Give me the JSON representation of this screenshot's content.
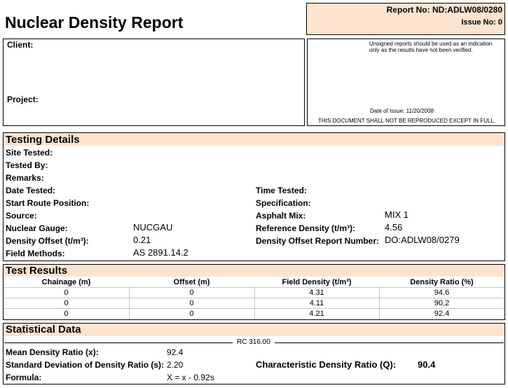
{
  "header": {
    "title": "Nuclear Density Report",
    "report_no": "Report No: ND:ADLW08/0280",
    "issue_no": "Issue No: 0"
  },
  "client_box": {
    "client": "Client:",
    "project": "Project:"
  },
  "notice": {
    "unsigned": "Unsigned reports should be used as an indication only as the results have not been verified.",
    "date_of_issue": "Date of Issue: 11/20/2008",
    "reproduction": "THIS DOCUMENT SHALL NOT BE REPRODUCED EXCEPT IN FULL."
  },
  "testing_details": {
    "title": "Testing Details",
    "left": [
      {
        "label": "Site Tested:"
      },
      {
        "label": "Tested By:"
      },
      {
        "label": "Remarks:"
      },
      {
        "label": "Date Tested:"
      },
      {
        "label": "Start Route Position:"
      },
      {
        "label": "Source:"
      },
      {
        "label": "Nuclear Gauge:",
        "value": "NUCGAU"
      },
      {
        "label": "Density Offset (t/m³):",
        "value": "0.21"
      },
      {
        "label": "Field Methods:",
        "value": "AS 2891.14.2"
      }
    ],
    "right": [
      {
        "label": "Time Tested:"
      },
      {
        "label": "Specification:"
      },
      {
        "label": "Asphalt Mix:",
        "value": "MIX 1"
      },
      {
        "label": "Reference Density (t/m³):",
        "value": "4.56"
      },
      {
        "label": "Density Offset Report Number:",
        "value": "DO:ADLW08/0279"
      }
    ]
  },
  "test_results": {
    "title": "Test Results",
    "columns": [
      "Chainage (m)",
      "Offset (m)",
      "Field Density (t/m³)",
      "Density Ratio (%)"
    ],
    "rows": [
      [
        0,
        0,
        4.31,
        94.6
      ],
      [
        0,
        0,
        4.11,
        90.2
      ],
      [
        0,
        0,
        4.21,
        92.4
      ]
    ]
  },
  "statistical_data": {
    "title": "Statistical Data",
    "rc": "RC 316.00",
    "mean_label": "Mean Density Ratio (x):",
    "mean_value": "92.4",
    "std_label": "Standard Deviation of Density Ratio (s):",
    "std_value": "2.20",
    "characteristic_label": "Characteristic Density Ratio (Q):",
    "characteristic_value": "90.4",
    "formula_label": "Formula:",
    "formula_value": "X = x - 0.92s"
  }
}
